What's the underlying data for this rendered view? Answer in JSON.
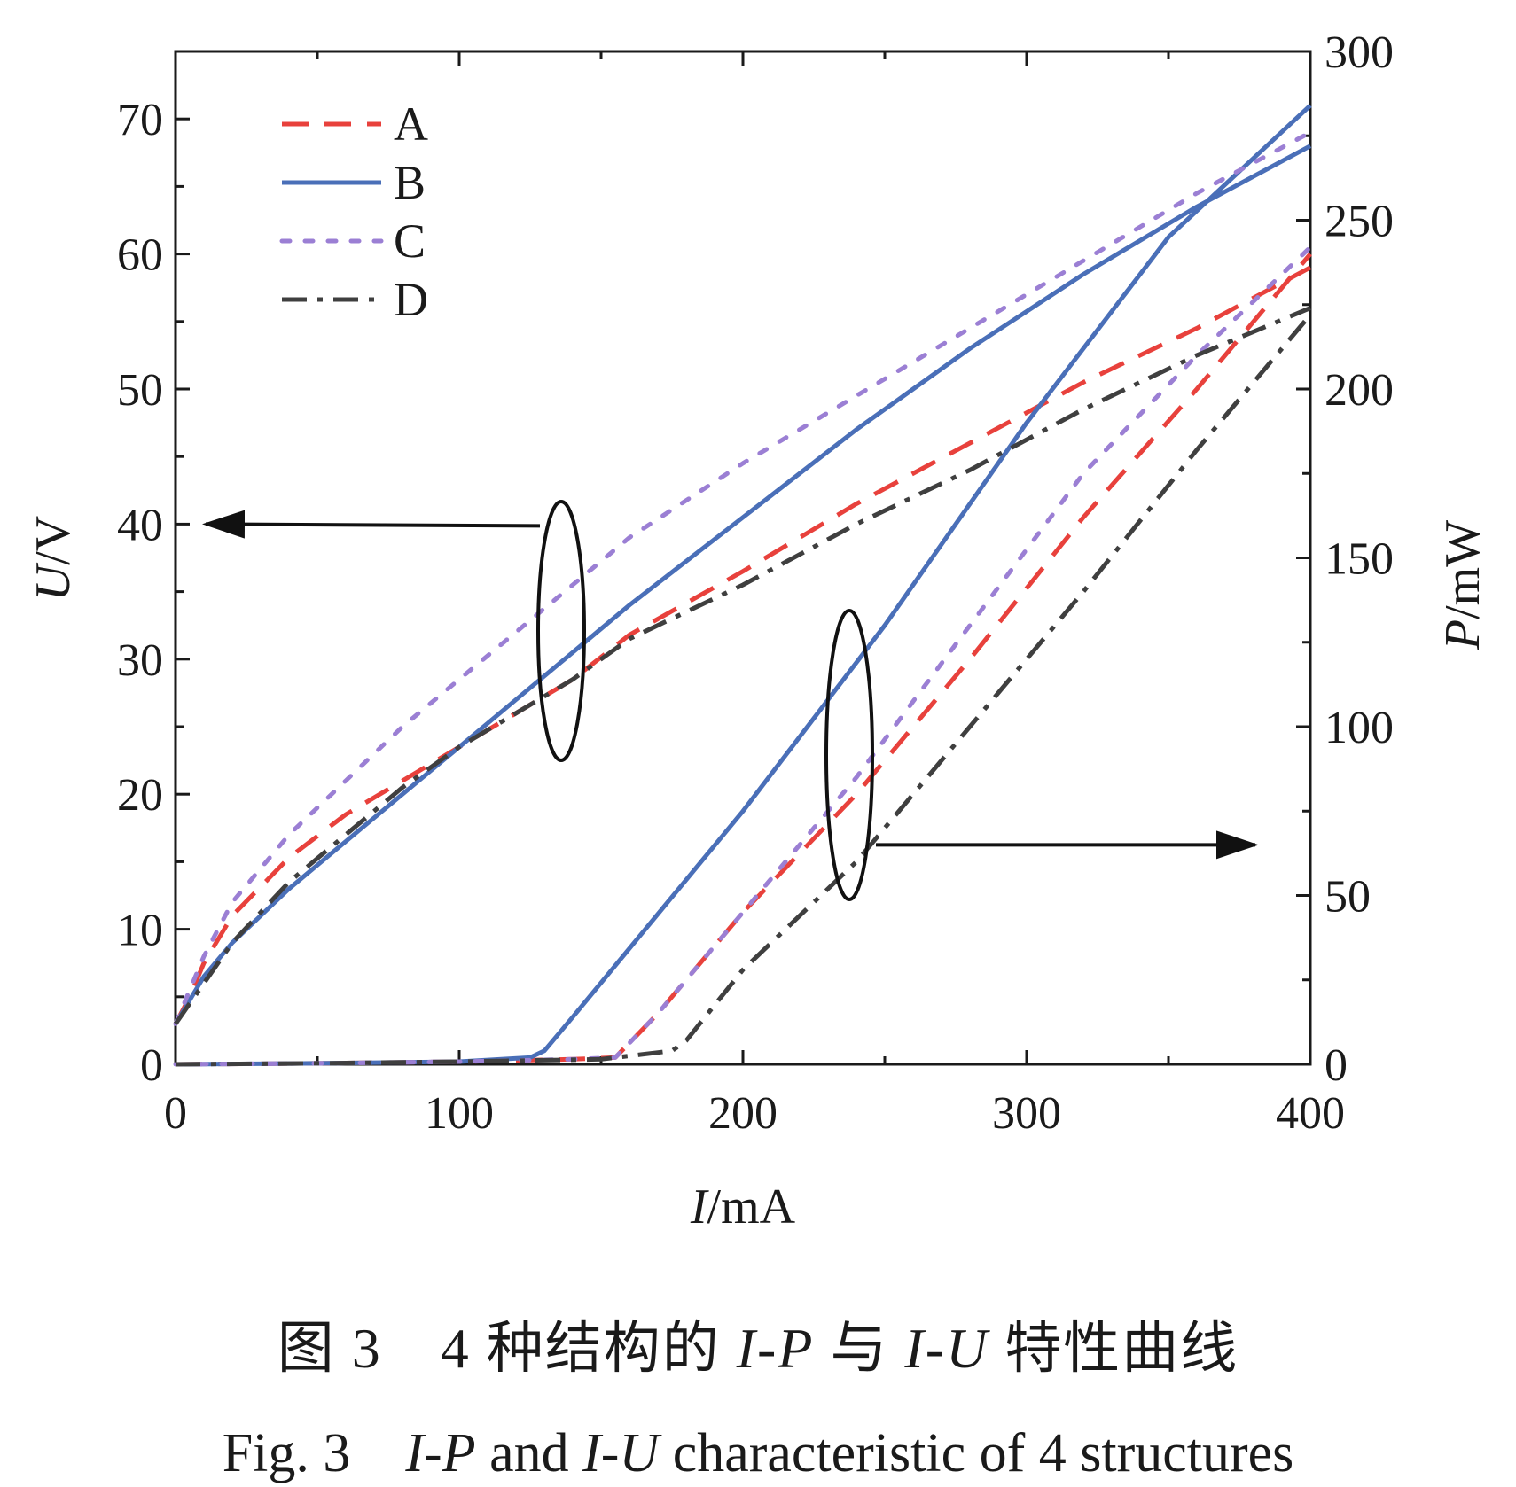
{
  "chart_data": {
    "type": "line",
    "x_axis": {
      "label_var": "I",
      "label_unit": "/mA",
      "range": [
        0,
        400
      ],
      "ticks": [
        "0",
        "100",
        "200",
        "300",
        "400"
      ]
    },
    "y_left": {
      "label_var": "U",
      "label_unit": "/V",
      "range": [
        0,
        75
      ],
      "ticks": [
        "0",
        "10",
        "20",
        "30",
        "40",
        "50",
        "60",
        "70"
      ]
    },
    "y_right": {
      "label_var": "P",
      "label_unit": "/mW",
      "range": [
        0,
        300
      ],
      "ticks": [
        "0",
        "50",
        "100",
        "150",
        "200",
        "250",
        "300"
      ]
    },
    "legend": {
      "position": "top-left"
    },
    "series": [
      {
        "name": "A",
        "color": "#e8413c",
        "dash": "dashed",
        "iu": [
          [
            0,
            3
          ],
          [
            5,
            5
          ],
          [
            10,
            7.5
          ],
          [
            20,
            11
          ],
          [
            40,
            15.3
          ],
          [
            60,
            18.5
          ],
          [
            80,
            21
          ],
          [
            100,
            23.5
          ],
          [
            120,
            26
          ],
          [
            140,
            28.5
          ],
          [
            160,
            31.8
          ],
          [
            200,
            36.5
          ],
          [
            240,
            41.5
          ],
          [
            280,
            46
          ],
          [
            320,
            50.5
          ],
          [
            360,
            54.5
          ],
          [
            400,
            59
          ]
        ],
        "ip": [
          [
            0,
            0
          ],
          [
            50,
            0.3
          ],
          [
            100,
            0.8
          ],
          [
            140,
            1.5
          ],
          [
            155,
            2
          ],
          [
            170,
            15
          ],
          [
            200,
            45
          ],
          [
            240,
            80
          ],
          [
            280,
            120
          ],
          [
            320,
            162
          ],
          [
            360,
            200
          ],
          [
            400,
            240
          ]
        ]
      },
      {
        "name": "B",
        "color": "#4a6fb8",
        "dash": "solid",
        "iu": [
          [
            0,
            3
          ],
          [
            10,
            6.5
          ],
          [
            20,
            9
          ],
          [
            40,
            13
          ],
          [
            60,
            16.5
          ],
          [
            80,
            20
          ],
          [
            100,
            23.5
          ],
          [
            120,
            27
          ],
          [
            140,
            30.5
          ],
          [
            160,
            34
          ],
          [
            200,
            40.5
          ],
          [
            240,
            47
          ],
          [
            280,
            53
          ],
          [
            320,
            58.5
          ],
          [
            360,
            63.5
          ],
          [
            400,
            68
          ]
        ],
        "ip": [
          [
            0,
            0
          ],
          [
            50,
            0.3
          ],
          [
            100,
            0.8
          ],
          [
            125,
            2
          ],
          [
            130,
            4
          ],
          [
            140,
            14
          ],
          [
            200,
            75
          ],
          [
            250,
            130
          ],
          [
            300,
            190
          ],
          [
            350,
            245
          ],
          [
            400,
            284
          ]
        ]
      },
      {
        "name": "C",
        "color": "#9b7fd4",
        "dash": "dotted",
        "iu": [
          [
            0,
            3
          ],
          [
            5,
            5.5
          ],
          [
            10,
            8
          ],
          [
            20,
            12
          ],
          [
            40,
            17
          ],
          [
            60,
            21
          ],
          [
            80,
            25
          ],
          [
            100,
            28.5
          ],
          [
            120,
            32
          ],
          [
            140,
            35.5
          ],
          [
            160,
            39
          ],
          [
            200,
            44.5
          ],
          [
            240,
            49.5
          ],
          [
            280,
            54.5
          ],
          [
            320,
            59.5
          ],
          [
            360,
            64.5
          ],
          [
            400,
            69
          ]
        ],
        "ip": [
          [
            0,
            0
          ],
          [
            50,
            0.3
          ],
          [
            100,
            0.8
          ],
          [
            140,
            1.5
          ],
          [
            155,
            2
          ],
          [
            170,
            15
          ],
          [
            200,
            45
          ],
          [
            240,
            85
          ],
          [
            280,
            130
          ],
          [
            320,
            175
          ],
          [
            360,
            210
          ],
          [
            400,
            242
          ]
        ]
      },
      {
        "name": "D",
        "color": "#3f3f3f",
        "dash": "dashdot",
        "iu": [
          [
            0,
            3
          ],
          [
            10,
            6
          ],
          [
            20,
            9
          ],
          [
            40,
            13.5
          ],
          [
            60,
            17
          ],
          [
            80,
            20.5
          ],
          [
            100,
            23.5
          ],
          [
            120,
            26
          ],
          [
            140,
            28.5
          ],
          [
            160,
            31.5
          ],
          [
            200,
            35.5
          ],
          [
            240,
            40
          ],
          [
            280,
            44
          ],
          [
            320,
            48.5
          ],
          [
            360,
            52.5
          ],
          [
            400,
            56
          ]
        ],
        "ip": [
          [
            0,
            0
          ],
          [
            50,
            0.3
          ],
          [
            100,
            0.8
          ],
          [
            150,
            1.5
          ],
          [
            175,
            4
          ],
          [
            180,
            7
          ],
          [
            200,
            28
          ],
          [
            240,
            60
          ],
          [
            280,
            100
          ],
          [
            320,
            140
          ],
          [
            360,
            182
          ],
          [
            400,
            222
          ]
        ]
      }
    ],
    "annotations": [
      {
        "target_axis": "left",
        "target_value": 40,
        "ellipse_at": [
          138,
          30
        ]
      },
      {
        "target_axis": "right",
        "target_value": 65,
        "ellipse_at": [
          238,
          65
        ]
      }
    ]
  },
  "caption": {
    "cn_prefix": "图 3　4 种结构的 ",
    "cn_ip": "I-P",
    "cn_mid": " 与 ",
    "cn_iu": "I-U",
    "cn_suffix": " 特性曲线",
    "en_prefix": "Fig. 3　",
    "en_ip": "I-P",
    "en_mid": " and ",
    "en_iu": "I-U",
    "en_suffix": " characteristic of 4 structures"
  }
}
